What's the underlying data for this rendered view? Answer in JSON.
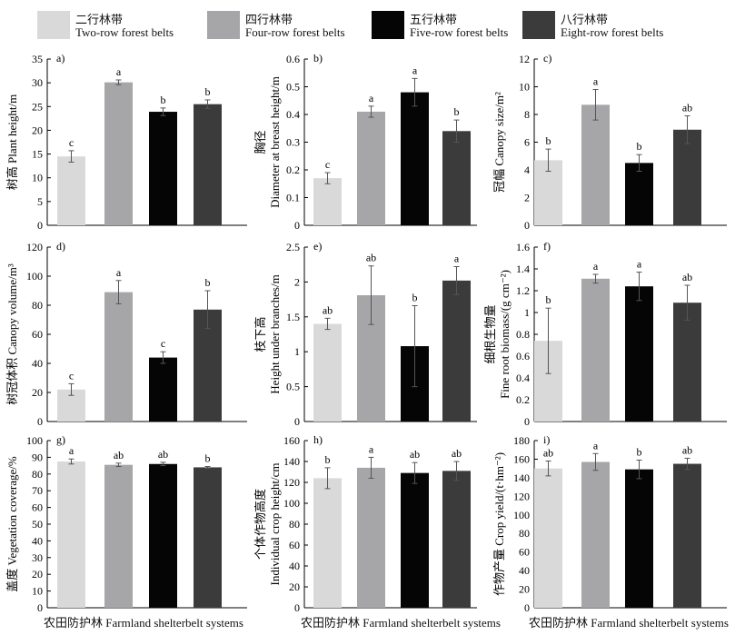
{
  "legend": [
    {
      "cn": "二行林带",
      "en": "Two-row forest belts",
      "color": "#d9d9d9"
    },
    {
      "cn": "四行林带",
      "en": "Four-row forest belts",
      "color": "#a6a6a8"
    },
    {
      "cn": "五行林带",
      "en": "Five-row forest belts",
      "color": "#050505"
    },
    {
      "cn": "八行林带",
      "en": "Eight-row forest belts",
      "color": "#3b3b3b"
    }
  ],
  "x_caption": "农田防护林 Farmland shelterbelt systems",
  "chart_data": [
    {
      "type": "bar",
      "panel": "a)",
      "ylabel_cn": "树高 Plant height/m",
      "ylabel_en": "",
      "ylim": [
        0,
        35
      ],
      "yticks": [
        0,
        5,
        10,
        15,
        20,
        25,
        30,
        35
      ],
      "categories": [
        "Two-row forest belts",
        "Four-row forest belts",
        "Five-row forest belts",
        "Eight-row forest belts"
      ],
      "values": [
        14.5,
        30.1,
        23.9,
        25.5
      ],
      "errors": [
        1.2,
        0.5,
        0.8,
        0.9
      ],
      "letters": [
        "c",
        "a",
        "b",
        "b"
      ]
    },
    {
      "type": "bar",
      "panel": "b)",
      "ylabel_cn": "胸径",
      "ylabel_en": "Diameter at breast height/m",
      "ylim": [
        0,
        0.6
      ],
      "yticks": [
        0,
        0.1,
        0.2,
        0.3,
        0.4,
        0.5,
        0.6
      ],
      "categories": [
        "Two-row forest belts",
        "Four-row forest belts",
        "Five-row forest belts",
        "Eight-row forest belts"
      ],
      "values": [
        0.17,
        0.41,
        0.48,
        0.34
      ],
      "errors": [
        0.02,
        0.02,
        0.05,
        0.04
      ],
      "letters": [
        "c",
        "a",
        "a",
        "b"
      ]
    },
    {
      "type": "bar",
      "panel": "c)",
      "ylabel_cn": "冠幅 Canopy size/m²",
      "ylabel_en": "",
      "ylim": [
        0,
        12
      ],
      "yticks": [
        0,
        2,
        4,
        6,
        8,
        10,
        12
      ],
      "categories": [
        "Two-row forest belts",
        "Four-row forest belts",
        "Five-row forest belts",
        "Eight-row forest belts"
      ],
      "values": [
        4.7,
        8.7,
        4.5,
        6.9
      ],
      "errors": [
        0.8,
        1.1,
        0.6,
        1.0
      ],
      "letters": [
        "b",
        "a",
        "b",
        "ab"
      ]
    },
    {
      "type": "bar",
      "panel": "d)",
      "ylabel_cn": "树冠体积 Canopy volume/m³",
      "ylabel_en": "",
      "ylim": [
        0,
        120
      ],
      "yticks": [
        0,
        20,
        40,
        60,
        80,
        100,
        120
      ],
      "categories": [
        "Two-row forest belts",
        "Four-row forest belts",
        "Five-row forest belts",
        "Eight-row forest belts"
      ],
      "values": [
        22,
        89,
        44,
        77
      ],
      "errors": [
        4,
        8,
        4,
        13
      ],
      "letters": [
        "c",
        "a",
        "c",
        "b"
      ]
    },
    {
      "type": "bar",
      "panel": "e)",
      "ylabel_cn": "枝下高",
      "ylabel_en": "Height under branches/m",
      "ylim": [
        0,
        2.5
      ],
      "yticks": [
        0,
        0.5,
        1,
        1.5,
        2,
        2.5
      ],
      "categories": [
        "Two-row forest belts",
        "Four-row forest belts",
        "Five-row forest belts",
        "Eight-row forest belts"
      ],
      "values": [
        1.4,
        1.81,
        1.08,
        2.02
      ],
      "errors": [
        0.08,
        0.42,
        0.58,
        0.2
      ],
      "letters": [
        "ab",
        "ab",
        "b",
        "a"
      ]
    },
    {
      "type": "bar",
      "panel": "f)",
      "ylabel_cn": "细根生物量",
      "ylabel_en": "Fine root biomass/(g cm⁻²)",
      "ylim": [
        0,
        1.6
      ],
      "yticks": [
        0,
        0.2,
        0.4,
        0.6,
        0.8,
        1,
        1.2,
        1.4,
        1.6
      ],
      "categories": [
        "Two-row forest belts",
        "Four-row forest belts",
        "Five-row forest belts",
        "Eight-row forest belts"
      ],
      "values": [
        0.74,
        1.31,
        1.24,
        1.09
      ],
      "errors": [
        0.3,
        0.04,
        0.13,
        0.16
      ],
      "letters": [
        "b",
        "a",
        "a",
        "ab"
      ]
    },
    {
      "type": "bar",
      "panel": "g)",
      "ylabel_cn": "盖度 Vegetation coverage/%",
      "ylabel_en": "",
      "ylim": [
        0,
        100
      ],
      "yticks": [
        0,
        10,
        20,
        30,
        40,
        50,
        60,
        70,
        80,
        90,
        100
      ],
      "categories": [
        "Two-row forest belts",
        "Four-row forest belts",
        "Five-row forest belts",
        "Eight-row forest belts"
      ],
      "values": [
        87.5,
        85.5,
        86,
        84
      ],
      "errors": [
        1.5,
        1,
        1,
        0.5
      ],
      "letters": [
        "a",
        "ab",
        "ab",
        "b"
      ]
    },
    {
      "type": "bar",
      "panel": "h)",
      "ylabel_cn": "个体作物高度",
      "ylabel_en": "Individual crop height/cm",
      "ylim": [
        0,
        160
      ],
      "yticks": [
        0,
        20,
        40,
        60,
        80,
        100,
        120,
        140,
        160
      ],
      "categories": [
        "Two-row forest belts",
        "Four-row forest belts",
        "Five-row forest belts",
        "Eight-row forest belts"
      ],
      "values": [
        124,
        134,
        129,
        131
      ],
      "errors": [
        10,
        10,
        10,
        9
      ],
      "letters": [
        "b",
        "a",
        "ab",
        "ab"
      ]
    },
    {
      "type": "bar",
      "panel": "i)",
      "ylabel_cn": "作物产量 Crop yield/(t·hm⁻²)",
      "ylabel_en": "",
      "ylim": [
        0,
        180
      ],
      "yticks": [
        0,
        20,
        40,
        60,
        80,
        100,
        120,
        140,
        160,
        180
      ],
      "categories": [
        "Two-row forest belts",
        "Four-row forest belts",
        "Five-row forest belts",
        "Eight-row forest belts"
      ],
      "values": [
        150,
        157,
        149,
        155
      ],
      "errors": [
        8,
        9,
        10,
        6
      ],
      "letters": [
        "ab",
        "a",
        "b",
        "ab"
      ]
    }
  ]
}
